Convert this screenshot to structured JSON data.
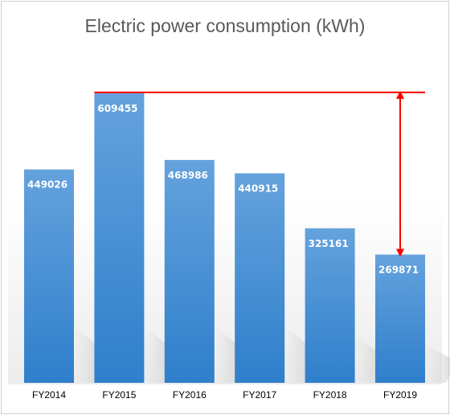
{
  "chart_data": {
    "type": "bar",
    "title": "Electric power consumption (kWh)",
    "categories": [
      "FY2014",
      "FY2015",
      "FY2016",
      "FY2017",
      "FY2018",
      "FY2019"
    ],
    "values": [
      449026,
      609455,
      468986,
      440915,
      325161,
      269871
    ],
    "ylim": [
      0,
      660000
    ],
    "grid": false,
    "legend": "none",
    "colors": {
      "bar_top": "#64a2dd",
      "bar_bottom": "#2f7fcb",
      "reference_line": "#ff0000",
      "plot_fade": "#ececec"
    },
    "annotation": {
      "type": "reference-line-with-difference-arrow",
      "from_category": "FY2015",
      "to_category": "FY2019"
    }
  }
}
